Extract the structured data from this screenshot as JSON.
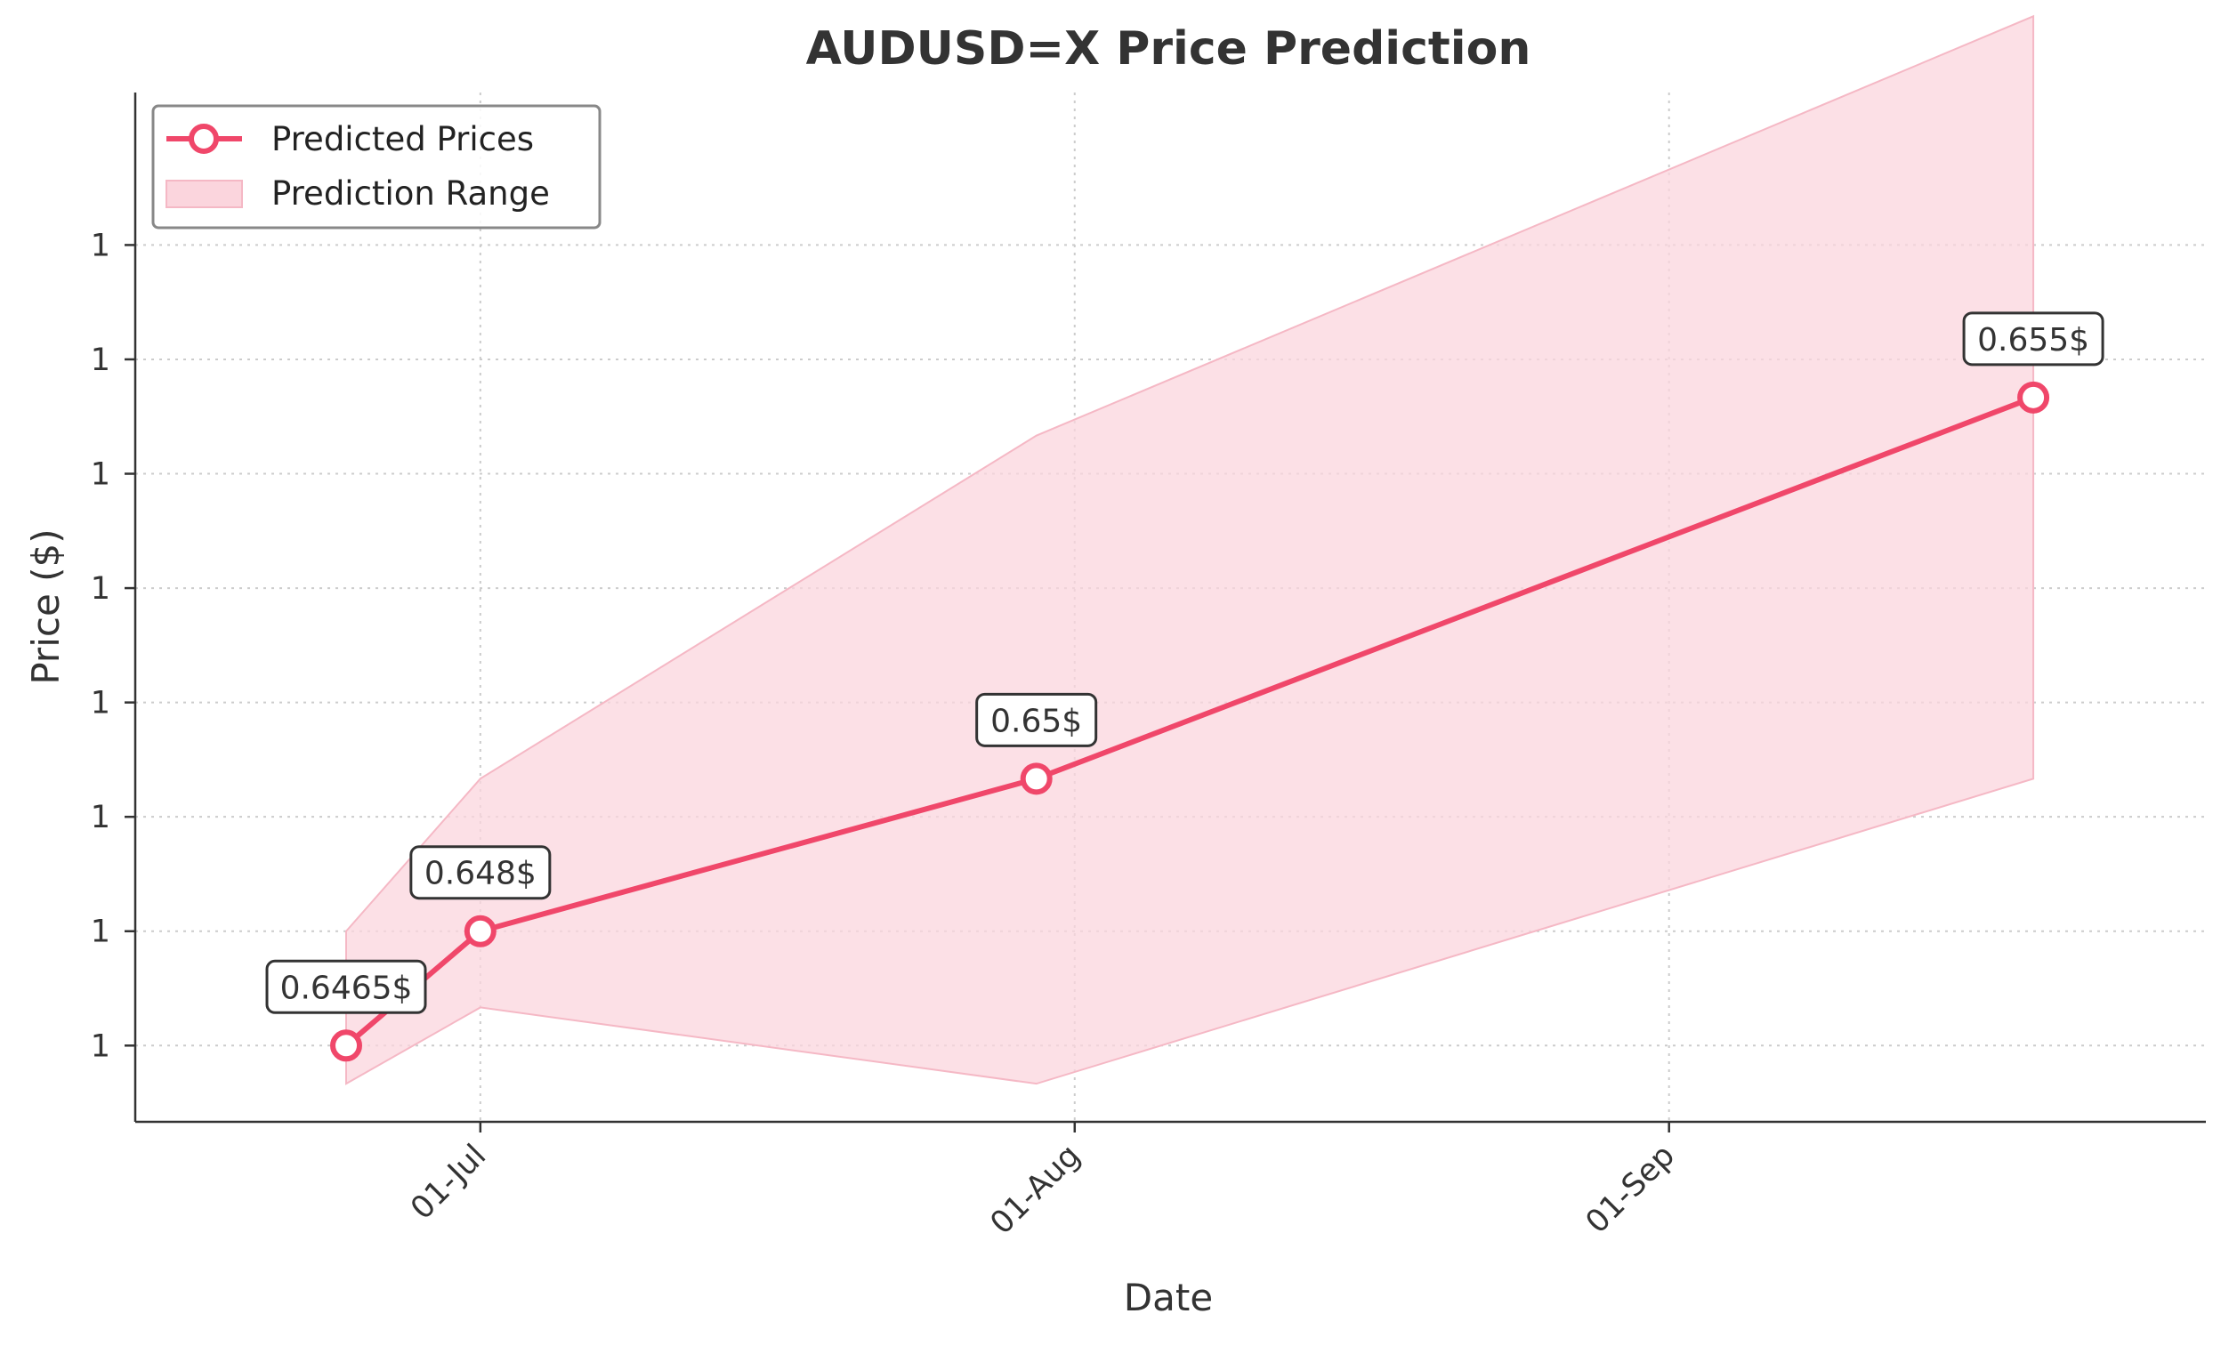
{
  "chart_data": {
    "type": "line",
    "title": "AUDUSD=X Price Prediction",
    "xlabel": "Date",
    "ylabel": "Price ($)",
    "x_tick_labels": [
      "01-Jul",
      "01-Aug",
      "01-Sep"
    ],
    "y_tick_labels": [
      "1",
      "1",
      "1",
      "1",
      "1",
      "1",
      "1",
      "1"
    ],
    "ylim": [
      0.6455,
      0.659
    ],
    "grid": true,
    "legend_position": "top-left",
    "series": [
      {
        "name": "Predicted Prices",
        "color": "#f0476a",
        "x": [
          "2024-06-24",
          "2024-07-01",
          "2024-07-30",
          "2024-09-20"
        ],
        "y": [
          0.6465,
          0.648,
          0.65,
          0.655
        ],
        "labels": [
          "0.6465$",
          "0.648$",
          "0.65$",
          "0.655$"
        ]
      },
      {
        "name": "Prediction Range",
        "type": "area",
        "color": "#fbd5dd",
        "x": [
          "2024-06-24",
          "2024-07-01",
          "2024-07-30",
          "2024-09-20"
        ],
        "lower": [
          0.646,
          0.647,
          0.646,
          0.65
        ],
        "upper": [
          0.648,
          0.65,
          0.6545,
          0.66
        ]
      }
    ]
  }
}
